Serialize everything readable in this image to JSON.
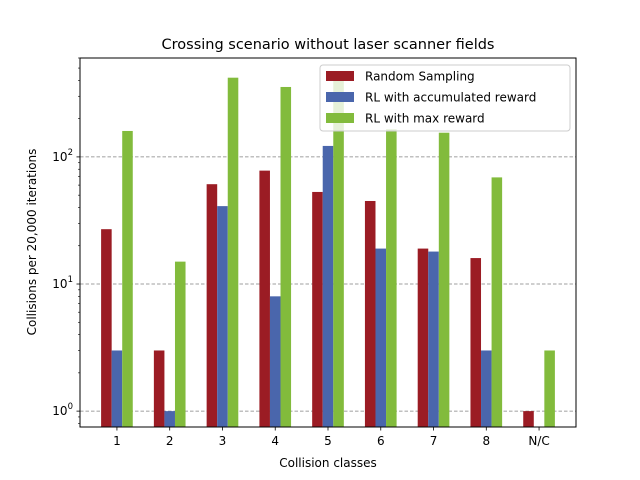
{
  "chart_data": {
    "type": "bar",
    "title": "Crossing scenario without laser scanner fields",
    "xlabel": "Collision classes",
    "ylabel": "Collisions per 20,000 iterations",
    "yscale": "log",
    "ylim": [
      0.75,
      600
    ],
    "yticks": [
      {
        "value": 1,
        "base": "10",
        "exp": "0"
      },
      {
        "value": 10,
        "base": "10",
        "exp": "1"
      },
      {
        "value": 100,
        "base": "10",
        "exp": "2"
      }
    ],
    "grid": "horizontal dashed at major ticks",
    "legend_position": "top-right",
    "categories": [
      "1",
      "2",
      "3",
      "4",
      "5",
      "6",
      "7",
      "8",
      "N/C"
    ],
    "series": [
      {
        "name": "Random Sampling",
        "color": "#9b1c24",
        "values": [
          27,
          3,
          61,
          78,
          53,
          45,
          19,
          16,
          1
        ]
      },
      {
        "name": "RL with accumulated reward",
        "color": "#4a66ac",
        "values": [
          3,
          1,
          41,
          8,
          122,
          19,
          18,
          3,
          null
        ]
      },
      {
        "name": "RL with max reward",
        "color": "#82bb3c",
        "values": [
          160,
          15,
          420,
          355,
          400,
          165,
          155,
          69,
          3
        ]
      }
    ]
  }
}
